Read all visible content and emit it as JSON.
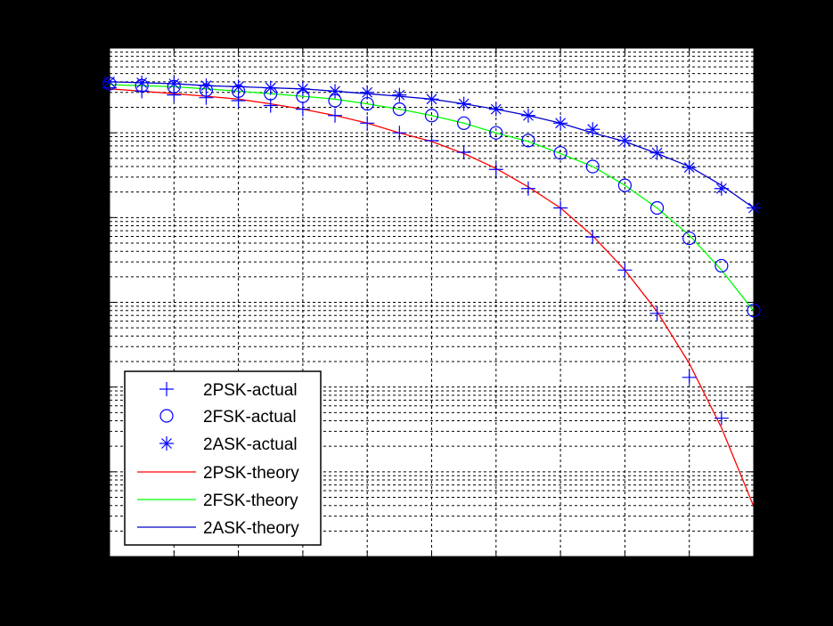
{
  "figure": {
    "background": "#000000",
    "axes_background": "#ffffff"
  },
  "chart_data": {
    "type": "line",
    "title": "",
    "xlabel": "",
    "ylabel": "",
    "xscale": "linear",
    "yscale": "log",
    "xlim": [
      0,
      10
    ],
    "ylim": [
      1e-06,
      1
    ],
    "grid": true,
    "grid_style": "dashed, major and minor on log y",
    "x_ticks": [
      0,
      1,
      2,
      3,
      4,
      5,
      6,
      7,
      8,
      9,
      10
    ],
    "y_ticks": [
      1e-06,
      1e-05,
      0.0001,
      0.001,
      0.01,
      0.1,
      1
    ],
    "tick_labels_visible": false,
    "legend_position": "lower left",
    "x": [
      0,
      0.5,
      1,
      1.5,
      2,
      2.5,
      3,
      3.5,
      4,
      4.5,
      5,
      5.5,
      6,
      6.5,
      7,
      7.5,
      8,
      8.5,
      9,
      9.5,
      10
    ],
    "series": [
      {
        "name": "2PSK-actual",
        "style": "marker",
        "marker": "+",
        "color": "#0000ff",
        "values": [
          0.34,
          0.31,
          0.28,
          0.26,
          0.24,
          0.21,
          0.19,
          0.16,
          0.13,
          0.1,
          0.081,
          0.059,
          0.037,
          0.022,
          0.013,
          0.0059,
          0.0024,
          0.00074,
          0.00013,
          4.3e-05,
          null
        ]
      },
      {
        "name": "2FSK-actual",
        "style": "marker",
        "marker": "o",
        "color": "#0000ff",
        "values": [
          0.38,
          0.36,
          0.35,
          0.32,
          0.31,
          0.29,
          0.27,
          0.24,
          0.22,
          0.19,
          0.16,
          0.13,
          0.1,
          0.081,
          0.058,
          0.04,
          0.024,
          0.013,
          0.0057,
          0.0027,
          0.0008
        ]
      },
      {
        "name": "2ASK-actual",
        "style": "marker",
        "marker": "*",
        "color": "#0000ff",
        "values": [
          0.4,
          0.39,
          0.38,
          0.36,
          0.35,
          0.34,
          0.33,
          0.31,
          0.3,
          0.28,
          0.25,
          0.22,
          0.19,
          0.16,
          0.13,
          0.11,
          0.081,
          0.058,
          0.039,
          0.022,
          0.013
        ]
      },
      {
        "name": "2PSK-theory",
        "style": "line",
        "color": "#ff0000",
        "values": [
          0.33,
          0.31,
          0.29,
          0.27,
          0.25,
          0.22,
          0.19,
          0.16,
          0.13,
          0.1,
          0.079,
          0.057,
          0.038,
          0.023,
          0.013,
          0.0061,
          0.0024,
          0.00078,
          0.00019,
          3.3e-05,
          3.9e-06
        ]
      },
      {
        "name": "2FSK-theory",
        "style": "line",
        "color": "#00ff00",
        "values": [
          0.37,
          0.36,
          0.35,
          0.33,
          0.31,
          0.29,
          0.27,
          0.25,
          0.22,
          0.19,
          0.16,
          0.13,
          0.1,
          0.079,
          0.057,
          0.04,
          0.024,
          0.013,
          0.0062,
          0.0024,
          0.00079
        ]
      },
      {
        "name": "2ASK-theory",
        "style": "line",
        "color": "#0000cc",
        "values": [
          0.4,
          0.39,
          0.38,
          0.36,
          0.35,
          0.34,
          0.33,
          0.31,
          0.29,
          0.27,
          0.25,
          0.22,
          0.19,
          0.16,
          0.13,
          0.1,
          0.079,
          0.057,
          0.04,
          0.024,
          0.013
        ]
      }
    ]
  },
  "legend": {
    "items": [
      {
        "label": "2PSK-actual",
        "kind": "marker",
        "marker": "+",
        "color": "#0000ff"
      },
      {
        "label": "2FSK-actual",
        "kind": "marker",
        "marker": "o",
        "color": "#0000ff"
      },
      {
        "label": "2ASK-actual",
        "kind": "marker",
        "marker": "*",
        "color": "#0000ff"
      },
      {
        "label": "2PSK-theory",
        "kind": "line",
        "color": "#ff0000"
      },
      {
        "label": "2FSK-theory",
        "kind": "line",
        "color": "#00ff00"
      },
      {
        "label": "2ASK-theory",
        "kind": "line",
        "color": "#0000cc"
      }
    ]
  }
}
